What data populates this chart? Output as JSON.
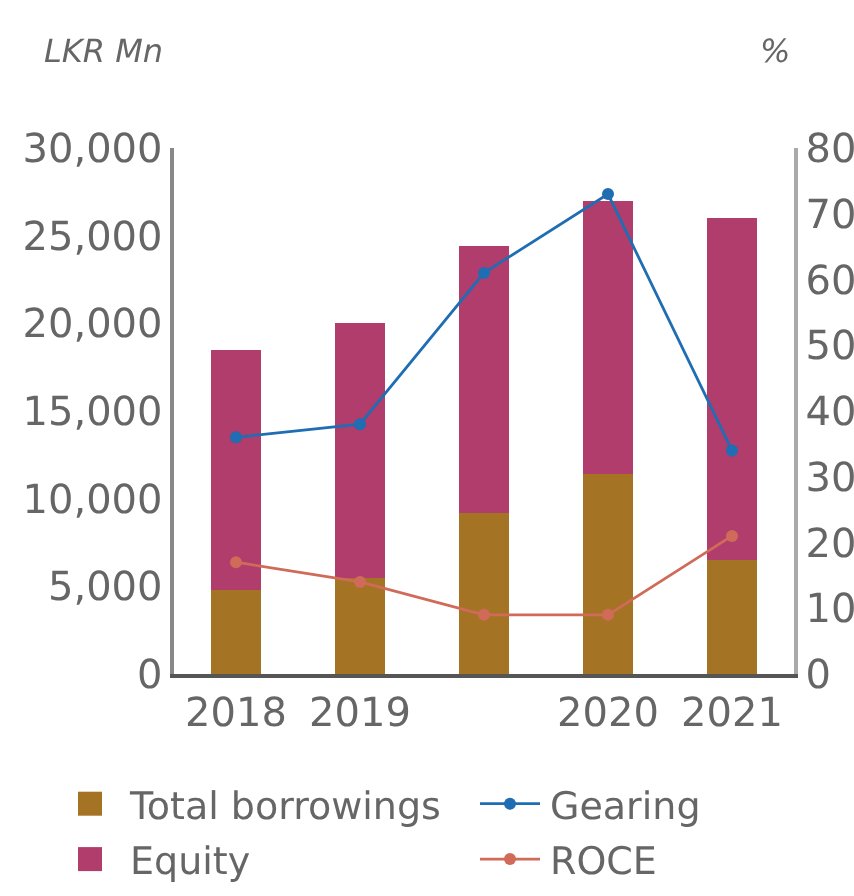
{
  "chart_data": {
    "type": "bar",
    "stacked": true,
    "ylabel": "LKR Mn",
    "y2label": "%",
    "categories": [
      "2018",
      "2019",
      null,
      "2020",
      "2021"
    ],
    "series": [
      {
        "name": "Total borrowings",
        "color": "#a47324",
        "values": [
          4800,
          5500,
          9200,
          11400,
          6500
        ]
      },
      {
        "name": "Equity",
        "color": "#b03d6b",
        "values": [
          13700,
          14500,
          15200,
          15600,
          19500
        ]
      },
      {
        "name": "Gearing",
        "type": "line",
        "axis": "y2",
        "color": "#1f6db3",
        "values": [
          36,
          38,
          61,
          73,
          34
        ]
      },
      {
        "name": "ROCE",
        "type": "line",
        "axis": "y2",
        "color": "#cf6b58",
        "values": [
          17,
          14,
          9,
          9,
          21
        ]
      }
    ],
    "ylim": [
      0,
      30000
    ],
    "yticks": [
      0,
      {
        "value": 5000,
        "label": "5,000"
      },
      {
        "value": 10000,
        "label": "10,000"
      },
      {
        "value": 15000,
        "label": "15,000"
      },
      {
        "value": 20000,
        "label": "20,000"
      },
      {
        "value": 25000,
        "label": "25,000"
      },
      {
        "value": 30000,
        "label": "30,000"
      }
    ],
    "y2lim": [
      0,
      80
    ],
    "y2ticks": [
      0,
      10,
      20,
      30,
      40,
      50,
      60,
      70,
      80
    ],
    "marker": "circle",
    "legend": "bottom"
  }
}
